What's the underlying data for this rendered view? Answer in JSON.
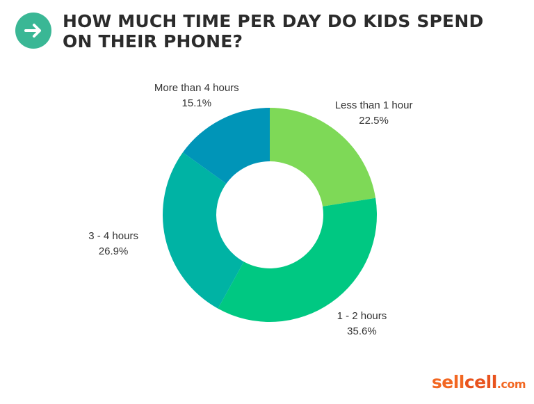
{
  "header": {
    "title": "HOW MUCH TIME PER DAY DO KIDS SPEND ON THEIR PHONE?",
    "icon": "arrow-right-icon",
    "icon_color": "#3ab795"
  },
  "chart_data": {
    "type": "pie",
    "donut": true,
    "start_angle_deg": 0,
    "direction": "clockwise",
    "categories": [
      "Less than 1 hour",
      "1 - 2 hours",
      "3 - 4 hours",
      "More than 4 hours"
    ],
    "values": [
      22.5,
      35.6,
      26.9,
      15.1
    ],
    "value_labels": [
      "22.5%",
      "35.6%",
      "26.9%",
      "15.1%"
    ],
    "colors": [
      "#7ed957",
      "#00c882",
      "#00b3a4",
      "#0095b8"
    ],
    "legend": "none"
  },
  "logo": {
    "part1": "sell",
    "part2": "cell",
    "part3": ".com",
    "color": "#f26722",
    "color_dark": "#e8531e"
  }
}
